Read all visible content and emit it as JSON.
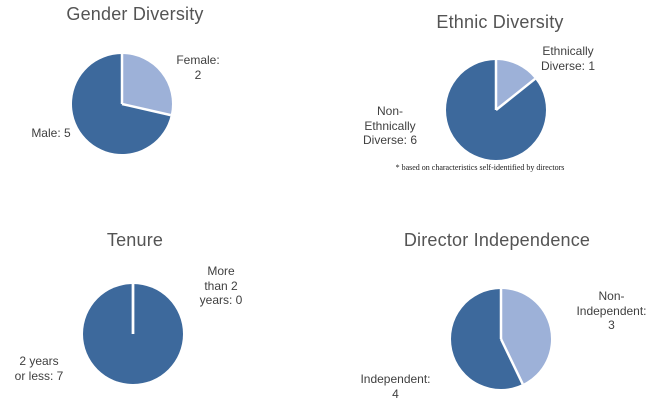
{
  "colors": {
    "background": "#ffffff",
    "slice_dark_blue": "#3D699C",
    "slice_light_blue": "#9DB1D8",
    "slice_border": "#ffffff",
    "title_text": "#545454",
    "label_text": "#404040",
    "footnote_text": "#1a1a1a"
  },
  "chart_data": [
    {
      "type": "pie",
      "title": "Gender Diversity",
      "categories": [
        "Female",
        "Male"
      ],
      "values": [
        2,
        5
      ],
      "total": 7,
      "slice_colors": [
        "#9DB1D8",
        "#3D699C"
      ],
      "point_labels": [
        "Female:\n2",
        "Male: 5"
      ],
      "start_angle_deg": 0,
      "direction": "clockwise",
      "legend": "none"
    },
    {
      "type": "pie",
      "title": "Ethnic Diversity",
      "categories": [
        "Ethnically Diverse",
        "Non-Ethnically Diverse"
      ],
      "values": [
        1,
        6
      ],
      "total": 7,
      "slice_colors": [
        "#9DB1D8",
        "#3D699C"
      ],
      "point_labels": [
        "Ethnically\nDiverse: 1",
        "Non-\nEthnically\nDiverse: 6"
      ],
      "start_angle_deg": 0,
      "direction": "clockwise",
      "legend": "none",
      "footnote": "* based on characteristics self-identified by directors"
    },
    {
      "type": "pie",
      "title": "Tenure",
      "categories": [
        "More than 2 years",
        "2 years or less"
      ],
      "values": [
        0,
        7
      ],
      "total": 7,
      "slice_colors": [
        "#9DB1D8",
        "#3D699C"
      ],
      "point_labels": [
        "More\nthan 2\nyears: 0",
        "2 years\nor less: 7"
      ],
      "start_angle_deg": 0,
      "direction": "clockwise",
      "legend": "none"
    },
    {
      "type": "pie",
      "title": "Director Independence",
      "categories": [
        "Non-Independent",
        "Independent"
      ],
      "values": [
        3,
        4
      ],
      "total": 7,
      "slice_colors": [
        "#9DB1D8",
        "#3D699C"
      ],
      "point_labels": [
        "Non-\nIndependent:\n3",
        "Independent:\n4"
      ],
      "start_angle_deg": 0,
      "direction": "clockwise",
      "legend": "none"
    }
  ]
}
